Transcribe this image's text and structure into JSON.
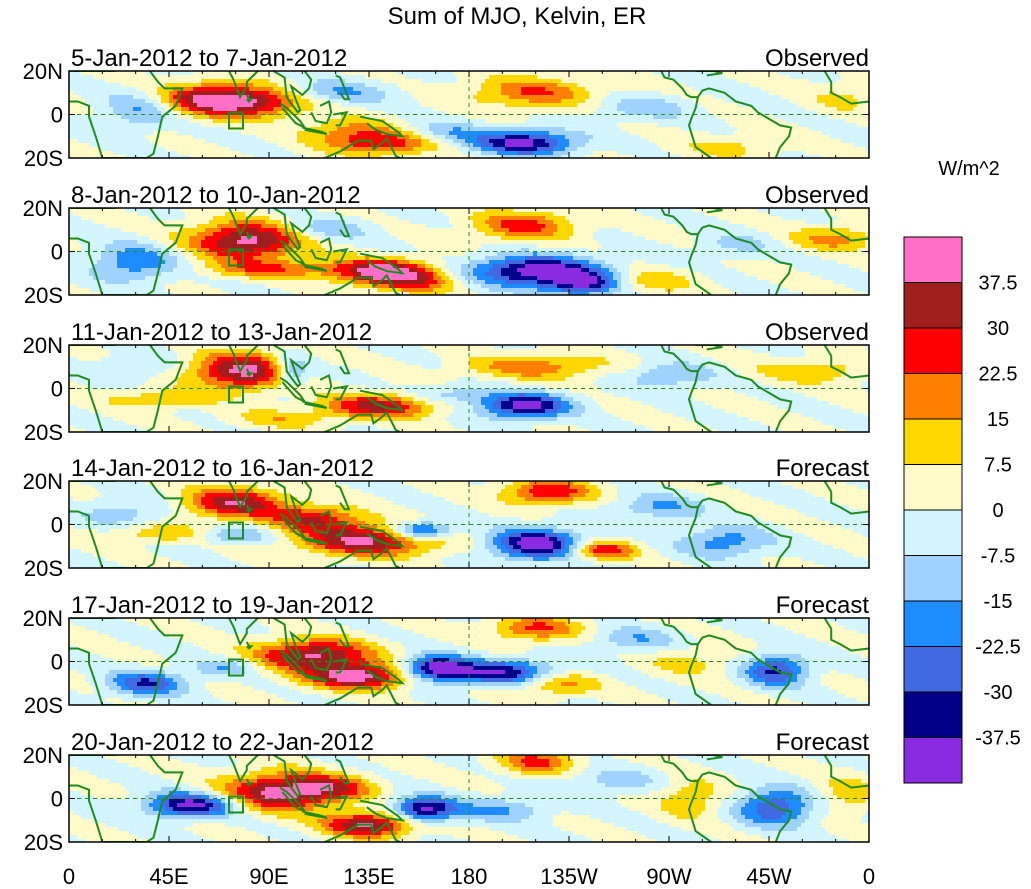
{
  "chart_data": {
    "type": "heatmap",
    "title": "Sum of MJO, Kelvin, ER",
    "colorbar": {
      "units": "W/m^2",
      "levels": [
        "37.5",
        "30",
        "22.5",
        "15",
        "7.5",
        "0",
        "-7.5",
        "-15",
        "-22.5",
        "-30",
        "-37.5"
      ],
      "colors": [
        "#ff6ec7",
        "#a01e1e",
        "#ff0000",
        "#ff7f00",
        "#ffd700",
        "#fffac8",
        "#d2f5ff",
        "#a0d2ff",
        "#1e8cff",
        "#4169e1",
        "#00008b",
        "#8a2be2"
      ]
    },
    "x_ticks": [
      "0",
      "45E",
      "90E",
      "135E",
      "180",
      "135W",
      "90W",
      "45W",
      "0"
    ],
    "y_ticks": [
      "20N",
      "0",
      "20S"
    ],
    "x_lim": [
      0,
      360
    ],
    "y_lim": [
      -20,
      20
    ],
    "panels": [
      {
        "date_range": "5-Jan-2012 to 7-Jan-2012",
        "kind": "Observed",
        "anomalies": [
          {
            "lon": 78,
            "lat": 6,
            "value": 40,
            "sx": 20,
            "sy": 5
          },
          {
            "lon": 60,
            "lat": 8,
            "value": 18,
            "sx": 14,
            "sy": 5
          },
          {
            "lon": 143,
            "lat": -13,
            "value": 30,
            "sx": 18,
            "sy": 4
          },
          {
            "lon": 125,
            "lat": -7,
            "value": 15,
            "sx": 14,
            "sy": 4
          },
          {
            "lon": 208,
            "lat": 10,
            "value": 22,
            "sx": 20,
            "sy": 5
          },
          {
            "lon": 298,
            "lat": -15,
            "value": 10,
            "sx": 16,
            "sy": 4
          },
          {
            "lon": 350,
            "lat": 8,
            "value": 9,
            "sx": 12,
            "sy": 5
          },
          {
            "lon": 205,
            "lat": -13,
            "value": -40,
            "sx": 16,
            "sy": 4
          },
          {
            "lon": 168,
            "lat": -9,
            "value": -16,
            "sx": 14,
            "sy": 4
          },
          {
            "lon": 118,
            "lat": 10,
            "value": -17,
            "sx": 18,
            "sy": 4
          },
          {
            "lon": 32,
            "lat": 2,
            "value": -16,
            "sx": 12,
            "sy": 6
          },
          {
            "lon": 258,
            "lat": 3,
            "value": -12,
            "sx": 16,
            "sy": 4
          }
        ]
      },
      {
        "date_range": "8-Jan-2012 to 10-Jan-2012",
        "kind": "Observed",
        "anomalies": [
          {
            "lon": 80,
            "lat": 5,
            "value": 42,
            "sx": 18,
            "sy": 6
          },
          {
            "lon": 140,
            "lat": -9,
            "value": 40,
            "sx": 16,
            "sy": 4
          },
          {
            "lon": 155,
            "lat": -14,
            "value": 22,
            "sx": 14,
            "sy": 4
          },
          {
            "lon": 205,
            "lat": 12,
            "value": 25,
            "sx": 16,
            "sy": 5
          },
          {
            "lon": 260,
            "lat": -14,
            "value": 14,
            "sx": 14,
            "sy": 4
          },
          {
            "lon": 345,
            "lat": 6,
            "value": 18,
            "sx": 14,
            "sy": 4
          },
          {
            "lon": 90,
            "lat": -8,
            "value": 20,
            "sx": 20,
            "sy": 3
          },
          {
            "lon": 210,
            "lat": -9,
            "value": -44,
            "sx": 20,
            "sy": 5
          },
          {
            "lon": 232,
            "lat": -15,
            "value": -32,
            "sx": 12,
            "sy": 4
          },
          {
            "lon": 30,
            "lat": -5,
            "value": -22,
            "sx": 14,
            "sy": 6
          },
          {
            "lon": 115,
            "lat": 10,
            "value": -14,
            "sx": 14,
            "sy": 4
          },
          {
            "lon": 300,
            "lat": 3,
            "value": -10,
            "sx": 12,
            "sy": 4
          }
        ]
      },
      {
        "date_range": "11-Jan-2012 to 13-Jan-2012",
        "kind": "Observed",
        "anomalies": [
          {
            "lon": 78,
            "lat": 8,
            "value": 40,
            "sx": 16,
            "sy": 6
          },
          {
            "lon": 140,
            "lat": -8,
            "value": 33,
            "sx": 18,
            "sy": 4
          },
          {
            "lon": 210,
            "lat": 10,
            "value": 20,
            "sx": 22,
            "sy": 4
          },
          {
            "lon": 40,
            "lat": -5,
            "value": 15,
            "sx": 16,
            "sy": 3
          },
          {
            "lon": 335,
            "lat": 8,
            "value": 14,
            "sx": 18,
            "sy": 4
          },
          {
            "lon": 95,
            "lat": -14,
            "value": 12,
            "sx": 16,
            "sy": 3
          },
          {
            "lon": 205,
            "lat": -8,
            "value": -42,
            "sx": 14,
            "sy": 4
          },
          {
            "lon": 100,
            "lat": 8,
            "value": -25,
            "sx": 6,
            "sy": 5
          },
          {
            "lon": 170,
            "lat": -3,
            "value": -14,
            "sx": 14,
            "sy": 3
          },
          {
            "lon": 270,
            "lat": 6,
            "value": -16,
            "sx": 14,
            "sy": 4
          },
          {
            "lon": 30,
            "lat": 10,
            "value": -10,
            "sx": 12,
            "sy": 4
          }
        ]
      },
      {
        "date_range": "14-Jan-2012 to 16-Jan-2012",
        "kind": "Forecast",
        "anomalies": [
          {
            "lon": 75,
            "lat": 10,
            "value": 36,
            "sx": 16,
            "sy": 5
          },
          {
            "lon": 135,
            "lat": -7,
            "value": 40,
            "sx": 22,
            "sy": 5
          },
          {
            "lon": 110,
            "lat": 3,
            "value": 28,
            "sx": 14,
            "sy": 4
          },
          {
            "lon": 215,
            "lat": 15,
            "value": 30,
            "sx": 14,
            "sy": 4
          },
          {
            "lon": 240,
            "lat": -12,
            "value": 30,
            "sx": 10,
            "sy": 3
          },
          {
            "lon": 40,
            "lat": -4,
            "value": 15,
            "sx": 16,
            "sy": 3
          },
          {
            "lon": 158,
            "lat": -3,
            "value": -38,
            "sx": 10,
            "sy": 3
          },
          {
            "lon": 210,
            "lat": -9,
            "value": -44,
            "sx": 14,
            "sy": 5
          },
          {
            "lon": 295,
            "lat": -8,
            "value": -20,
            "sx": 14,
            "sy": 5
          },
          {
            "lon": 75,
            "lat": -5,
            "value": -16,
            "sx": 12,
            "sy": 3
          },
          {
            "lon": 265,
            "lat": 8,
            "value": -16,
            "sx": 14,
            "sy": 4
          },
          {
            "lon": 25,
            "lat": 5,
            "value": -12,
            "sx": 14,
            "sy": 5
          }
        ]
      },
      {
        "date_range": "17-Jan-2012 to 19-Jan-2012",
        "kind": "Forecast",
        "anomalies": [
          {
            "lon": 110,
            "lat": 3,
            "value": 40,
            "sx": 18,
            "sy": 5
          },
          {
            "lon": 130,
            "lat": -7,
            "value": 42,
            "sx": 16,
            "sy": 4
          },
          {
            "lon": 210,
            "lat": 15,
            "value": 24,
            "sx": 14,
            "sy": 4
          },
          {
            "lon": 220,
            "lat": -10,
            "value": 20,
            "sx": 12,
            "sy": 4
          },
          {
            "lon": 280,
            "lat": 0,
            "value": 10,
            "sx": 14,
            "sy": 5
          },
          {
            "lon": 165,
            "lat": -3,
            "value": -42,
            "sx": 10,
            "sy": 4
          },
          {
            "lon": 195,
            "lat": -5,
            "value": -36,
            "sx": 18,
            "sy": 4
          },
          {
            "lon": 318,
            "lat": -4,
            "value": -32,
            "sx": 10,
            "sy": 5
          },
          {
            "lon": 35,
            "lat": -10,
            "value": -30,
            "sx": 12,
            "sy": 4
          },
          {
            "lon": 70,
            "lat": -3,
            "value": -14,
            "sx": 10,
            "sy": 3
          },
          {
            "lon": 255,
            "lat": 10,
            "value": -14,
            "sx": 14,
            "sy": 4
          }
        ]
      },
      {
        "date_range": "20-Jan-2012 to 22-Jan-2012",
        "kind": "Forecast",
        "anomalies": [
          {
            "lon": 95,
            "lat": 3,
            "value": 42,
            "sx": 18,
            "sy": 6
          },
          {
            "lon": 135,
            "lat": -12,
            "value": 40,
            "sx": 14,
            "sy": 4
          },
          {
            "lon": 120,
            "lat": 5,
            "value": 20,
            "sx": 12,
            "sy": 4
          },
          {
            "lon": 210,
            "lat": 17,
            "value": 24,
            "sx": 12,
            "sy": 4
          },
          {
            "lon": 280,
            "lat": 0,
            "value": 15,
            "sx": 10,
            "sy": 6
          },
          {
            "lon": 350,
            "lat": 2,
            "value": 12,
            "sx": 10,
            "sy": 6
          },
          {
            "lon": 55,
            "lat": -3,
            "value": -42,
            "sx": 14,
            "sy": 4
          },
          {
            "lon": 160,
            "lat": -5,
            "value": -42,
            "sx": 10,
            "sy": 4
          },
          {
            "lon": 318,
            "lat": -4,
            "value": -30,
            "sx": 12,
            "sy": 6
          },
          {
            "lon": 195,
            "lat": -5,
            "value": -16,
            "sx": 14,
            "sy": 4
          },
          {
            "lon": 245,
            "lat": 8,
            "value": -12,
            "sx": 14,
            "sy": 4
          }
        ]
      }
    ]
  }
}
